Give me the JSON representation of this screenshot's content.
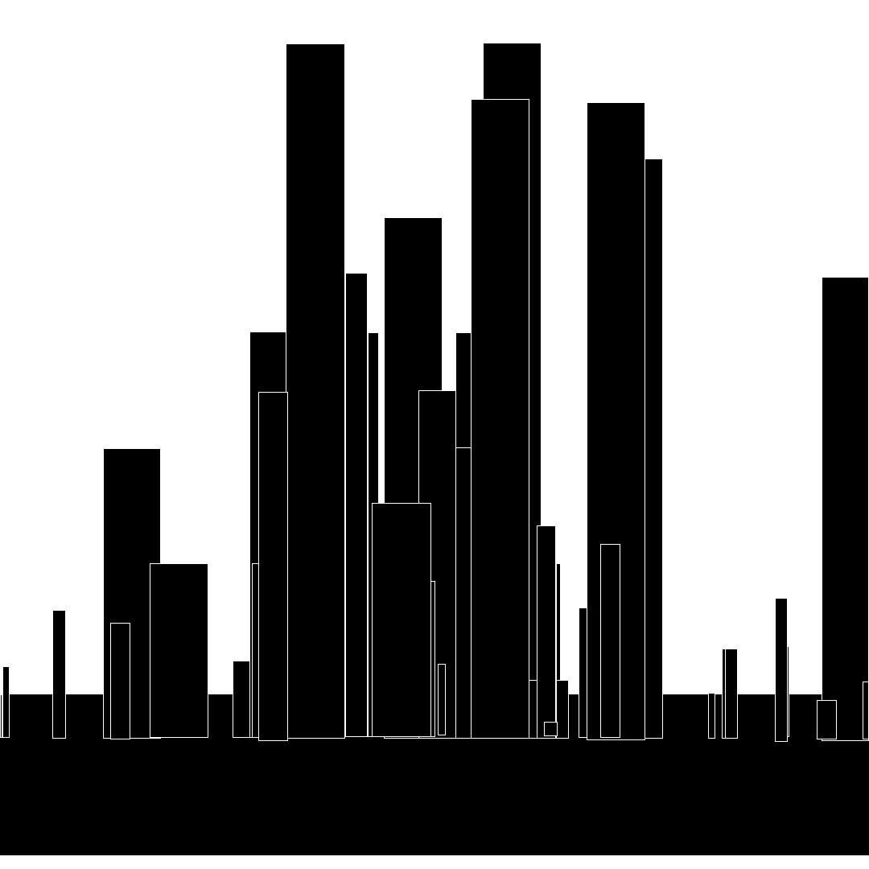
{
  "colors": {
    "background": "#ffffff",
    "fill": "#000000",
    "outline": "#ffffff"
  }
}
